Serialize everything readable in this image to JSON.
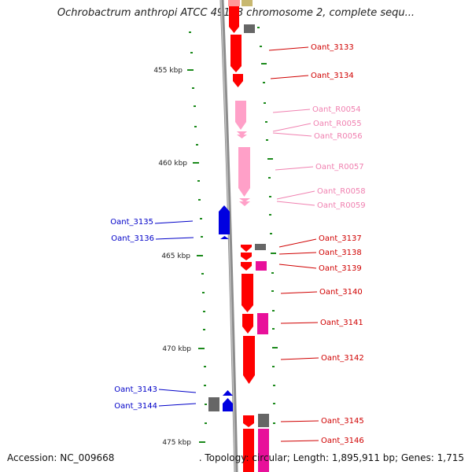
{
  "title": "Ochrobactrum anthropi ATCC 49188 chromosome 2, complete sequ...",
  "footer": {
    "accession": "Accession: NC_009668",
    "topology": ". Topology: circular; Length: 1,895,911 bp; Genes: 1,715"
  },
  "colors": {
    "cds_forward": "#ff0000",
    "cds_reverse": "#0000e0",
    "rrna": "#ffa0c8",
    "trna": "#e8109a",
    "gap": "#666666",
    "tick": "#1c8a1c",
    "backbone": "#8c8c8c"
  },
  "scale": {
    "ticks": [
      {
        "label": "455 kbp",
        "kbp": 455
      },
      {
        "label": "460 kbp",
        "kbp": 460
      },
      {
        "label": "465 kbp",
        "kbp": 465
      },
      {
        "label": "470 kbp",
        "kbp": 470
      },
      {
        "label": "475 kbp",
        "kbp": 475
      }
    ]
  },
  "genes": [
    {
      "label": "Oant_3133",
      "kbp": 453.9,
      "type": "cds_forward"
    },
    {
      "label": "Oant_3134",
      "kbp": 454.6,
      "type": "cds_forward"
    },
    {
      "label": "Oant_R0054",
      "kbp": 456.9,
      "type": "rrna"
    },
    {
      "label": "Oant_R0055",
      "kbp": 457.6,
      "type": "rrna"
    },
    {
      "label": "Oant_R0056",
      "kbp": 458.2,
      "type": "rrna"
    },
    {
      "label": "Oant_R0057",
      "kbp": 460.2,
      "type": "rrna"
    },
    {
      "label": "Oant_R0058",
      "kbp": 461.6,
      "type": "rrna"
    },
    {
      "label": "Oant_R0059",
      "kbp": 462.2,
      "type": "rrna"
    },
    {
      "label": "Oant_3135",
      "kbp": 462.7,
      "type": "cds_reverse"
    },
    {
      "label": "Oant_3136",
      "kbp": 463.5,
      "type": "cds_reverse"
    },
    {
      "label": "Oant_3137",
      "kbp": 464.2,
      "type": "cds_forward"
    },
    {
      "label": "Oant_3138",
      "kbp": 464.7,
      "type": "cds_forward"
    },
    {
      "label": "Oant_3139",
      "kbp": 465.3,
      "type": "cds_forward"
    },
    {
      "label": "Oant_3140",
      "kbp": 466.4,
      "type": "cds_forward"
    },
    {
      "label": "Oant_3141",
      "kbp": 468.3,
      "type": "cds_forward"
    },
    {
      "label": "Oant_3142",
      "kbp": 470.0,
      "type": "cds_forward"
    },
    {
      "label": "Oant_3143",
      "kbp": 472.2,
      "type": "cds_reverse"
    },
    {
      "label": "Oant_3144",
      "kbp": 472.8,
      "type": "cds_reverse"
    },
    {
      "label": "Oant_3145",
      "kbp": 473.9,
      "type": "cds_forward"
    },
    {
      "label": "Oant_3146",
      "kbp": 474.8,
      "type": "cds_forward"
    }
  ]
}
